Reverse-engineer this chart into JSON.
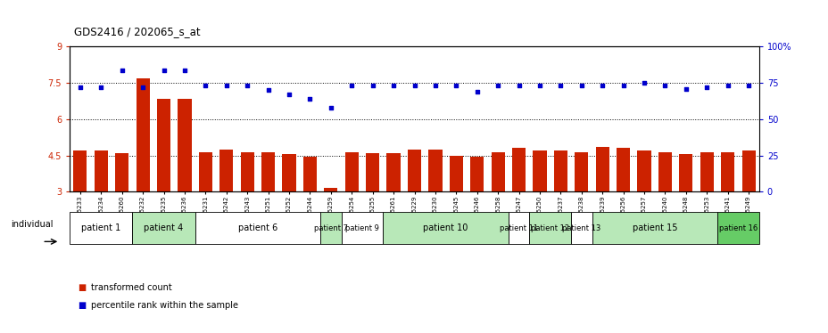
{
  "title": "GDS2416 / 202065_s_at",
  "samples": [
    "GSM135233",
    "GSM135234",
    "GSM135260",
    "GSM135232",
    "GSM135235",
    "GSM135236",
    "GSM135231",
    "GSM135242",
    "GSM135243",
    "GSM135251",
    "GSM135252",
    "GSM135244",
    "GSM135259",
    "GSM135254",
    "GSM135255",
    "GSM135261",
    "GSM135229",
    "GSM135230",
    "GSM135245",
    "GSM135246",
    "GSM135258",
    "GSM135247",
    "GSM135250",
    "GSM135237",
    "GSM135238",
    "GSM135239",
    "GSM135256",
    "GSM135257",
    "GSM135240",
    "GSM135248",
    "GSM135253",
    "GSM135241",
    "GSM135249"
  ],
  "bar_values": [
    4.7,
    4.7,
    4.6,
    7.7,
    6.85,
    6.85,
    4.65,
    4.75,
    4.65,
    4.65,
    4.55,
    4.45,
    3.15,
    4.65,
    4.6,
    4.6,
    4.75,
    4.75,
    4.5,
    4.45,
    4.65,
    4.8,
    4.7,
    4.7,
    4.65,
    4.85,
    4.8,
    4.7,
    4.65,
    4.55,
    4.65,
    4.65,
    4.7
  ],
  "scatter_values": [
    72,
    72,
    84,
    72,
    84,
    84,
    73,
    73,
    73,
    70,
    67,
    64,
    58,
    73,
    73,
    73,
    73,
    73,
    73,
    69,
    73,
    73,
    73,
    73,
    73,
    73,
    73,
    75,
    73,
    71,
    72,
    73,
    73
  ],
  "patients": [
    {
      "label": "patient 1",
      "start": 0,
      "end": 2,
      "color": "#ffffff"
    },
    {
      "label": "patient 4",
      "start": 3,
      "end": 5,
      "color": "#b8e8b8"
    },
    {
      "label": "patient 6",
      "start": 6,
      "end": 11,
      "color": "#ffffff"
    },
    {
      "label": "patient 7",
      "start": 12,
      "end": 12,
      "color": "#b8e8b8"
    },
    {
      "label": "patient 9",
      "start": 13,
      "end": 14,
      "color": "#ffffff"
    },
    {
      "label": "patient 10",
      "start": 15,
      "end": 20,
      "color": "#b8e8b8"
    },
    {
      "label": "patient 11",
      "start": 21,
      "end": 21,
      "color": "#ffffff"
    },
    {
      "label": "patient 12",
      "start": 22,
      "end": 23,
      "color": "#b8e8b8"
    },
    {
      "label": "patient 13",
      "start": 24,
      "end": 24,
      "color": "#ffffff"
    },
    {
      "label": "patient 15",
      "start": 25,
      "end": 30,
      "color": "#b8e8b8"
    },
    {
      "label": "patient 16",
      "start": 31,
      "end": 32,
      "color": "#66cc66"
    }
  ],
  "ylim_left": [
    3,
    9
  ],
  "ylim_right": [
    0,
    100
  ],
  "yticks_left": [
    3,
    4.5,
    6,
    7.5,
    9
  ],
  "yticks_right": [
    0,
    25,
    50,
    75,
    100
  ],
  "yticklabels_right": [
    "0",
    "25",
    "50",
    "75",
    "100%"
  ],
  "bar_color": "#cc2200",
  "scatter_color": "#0000cc",
  "bg_color": "#ffffff",
  "dotted_lines": [
    4.5,
    6.0,
    7.5
  ],
  "bar_bottom": 3,
  "individual_label": "individual",
  "legend_bar": "transformed count",
  "legend_scatter": "percentile rank within the sample"
}
